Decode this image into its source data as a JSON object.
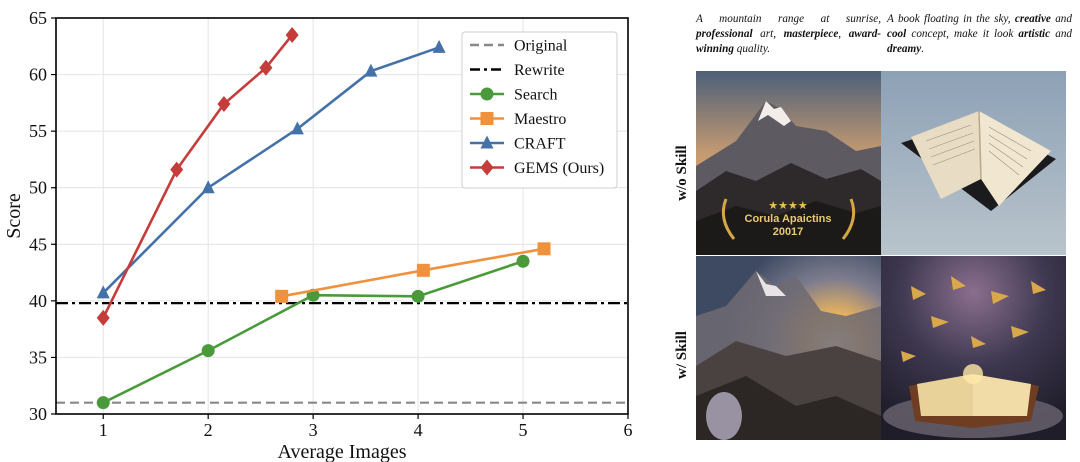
{
  "chart_data": {
    "type": "line",
    "xlabel": "Average Images",
    "ylabel": "Score",
    "xlim": [
      0.55,
      6
    ],
    "ylim": [
      30,
      65
    ],
    "xticks": [
      "1",
      "2",
      "3",
      "4",
      "5",
      "6"
    ],
    "yticks": [
      "30",
      "35",
      "40",
      "45",
      "50",
      "55",
      "60",
      "65"
    ],
    "grid": true,
    "legend_position": "top-right",
    "reference_lines": [
      {
        "name": "Original",
        "y": 31.0,
        "style": "dashed",
        "color": "#888888"
      },
      {
        "name": "Rewrite",
        "y": 39.8,
        "style": "dashdot",
        "color": "#000000"
      }
    ],
    "series": [
      {
        "name": "Search",
        "color": "#4a9a3b",
        "marker": "circle",
        "x": [
          1,
          2,
          3,
          4,
          5
        ],
        "y": [
          31.0,
          35.6,
          40.5,
          40.4,
          43.5
        ]
      },
      {
        "name": "Maestro",
        "color": "#f0913d",
        "marker": "square",
        "x": [
          2.7,
          4.05,
          5.2
        ],
        "y": [
          40.4,
          42.7,
          44.6
        ]
      },
      {
        "name": "CRAFT",
        "color": "#4472a8",
        "marker": "triangle",
        "x": [
          1,
          2,
          2.85,
          3.55,
          4.2
        ],
        "y": [
          40.7,
          50.0,
          55.2,
          60.3,
          62.4
        ]
      },
      {
        "name": "GEMS (Ours)",
        "color": "#c43d3a",
        "marker": "diamond",
        "x": [
          1,
          1.7,
          2.15,
          2.55,
          2.8
        ],
        "y": [
          38.5,
          51.6,
          57.4,
          60.6,
          63.5
        ]
      }
    ]
  },
  "figure": {
    "prompts": {
      "left": {
        "parts": [
          {
            "text": "A mountain range at sunrise, ",
            "bold": false
          },
          {
            "text": "professional",
            "bold": true
          },
          {
            "text": " art, ",
            "bold": false
          },
          {
            "text": "masterpiece",
            "bold": true
          },
          {
            "text": ", ",
            "bold": false
          },
          {
            "text": "award-winning",
            "bold": true
          },
          {
            "text": " quality.",
            "bold": false
          }
        ]
      },
      "right": {
        "parts": [
          {
            "text": "A book floating in the sky, ",
            "bold": false
          },
          {
            "text": "creative",
            "bold": true
          },
          {
            "text": " and ",
            "bold": false
          },
          {
            "text": "cool",
            "bold": true
          },
          {
            "text": " concept, make it look ",
            "bold": false
          },
          {
            "text": "artistic",
            "bold": true
          },
          {
            "text": " and ",
            "bold": false
          },
          {
            "text": "dreamy",
            "bold": true
          },
          {
            "text": ".",
            "bold": false
          }
        ]
      }
    },
    "row_labels": {
      "top": "w/o Skill",
      "bottom": "w/ Skill"
    },
    "badge": {
      "stars": "★★★★",
      "line1": "Corula Apaictins",
      "line2": "20017"
    }
  }
}
